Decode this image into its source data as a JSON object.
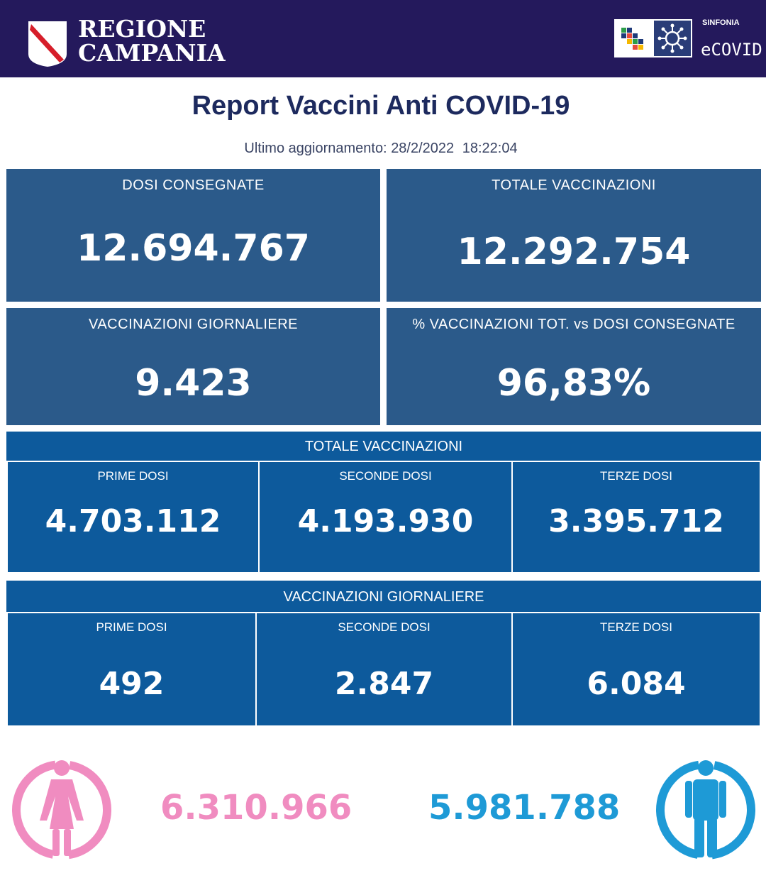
{
  "header": {
    "region_line1": "REGIONE",
    "region_line2": "CAMPANIA",
    "brand_small": "SINFONIA",
    "brand_large": "eCOVID",
    "color_bar": "#24195c"
  },
  "report": {
    "title": "Report Vaccini Anti COVID-19",
    "update_label": "Ultimo aggiornamento:",
    "update_date": "28/2/2022",
    "update_time": "18:22:04"
  },
  "cards": {
    "dosi_consegnate": {
      "label": "DOSI  CONSEGNATE",
      "value": "12.694.767"
    },
    "totale_vaccinazioni": {
      "label": "TOTALE VACCINAZIONI",
      "value": "12.292.754"
    },
    "vaccinazioni_giornaliere": {
      "label": "VACCINAZIONI GIORNALIERE",
      "value": "9.423"
    },
    "percentuale": {
      "label": "% VACCINAZIONI TOT. vs DOSI CONSEGNATE",
      "value": "96,83%"
    }
  },
  "totale_section": {
    "title": "TOTALE VACCINAZIONI",
    "prime": {
      "label": "PRIME DOSI",
      "value": "4.703.112"
    },
    "seconde": {
      "label": "SECONDE DOSI",
      "value": "4.193.930"
    },
    "terze": {
      "label": "TERZE DOSI",
      "value": "3.395.712"
    }
  },
  "giornaliere_section": {
    "title": "VACCINAZIONI GIORNALIERE",
    "prime": {
      "label": "PRIME DOSI",
      "value": "492"
    },
    "seconde": {
      "label": "SECONDE DOSI",
      "value": "2.847"
    },
    "terze": {
      "label": "TERZE DOSI",
      "value": "6.084"
    }
  },
  "gender": {
    "female": {
      "value": "6.310.966",
      "color": "#f08cc0",
      "icon": "female-person-icon"
    },
    "male": {
      "value": "5.981.788",
      "color": "#1e9ad6",
      "icon": "male-person-icon"
    }
  },
  "colors": {
    "card_bg": "#2b5a8a",
    "section_bg": "#0d5a9c",
    "title": "#1d2a5e"
  }
}
